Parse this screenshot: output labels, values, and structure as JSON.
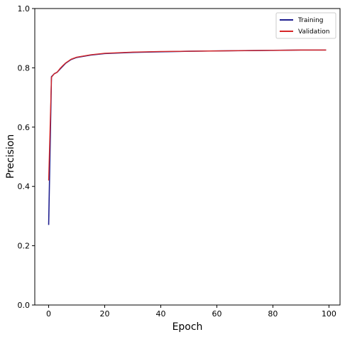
{
  "chart_data": {
    "type": "line",
    "xlabel": "Epoch",
    "ylabel": "Precision",
    "xlim": [
      -4.95,
      103.95
    ],
    "ylim": [
      0.0,
      1.0
    ],
    "xticks": [
      0,
      20,
      40,
      60,
      80,
      100
    ],
    "yticks": [
      0.0,
      0.2,
      0.4,
      0.6,
      0.8,
      1.0
    ],
    "grid": false,
    "legend_position": "top-right",
    "series": [
      {
        "name": "Training",
        "color": "#1f1f8f",
        "x": [
          0,
          1,
          2,
          3,
          4,
          5,
          6,
          8,
          10,
          15,
          20,
          30,
          40,
          50,
          60,
          70,
          80,
          90,
          99
        ],
        "y": [
          0.27,
          0.77,
          0.78,
          0.785,
          0.795,
          0.805,
          0.815,
          0.828,
          0.835,
          0.843,
          0.848,
          0.852,
          0.854,
          0.856,
          0.857,
          0.858,
          0.859,
          0.86,
          0.86
        ]
      },
      {
        "name": "Validation",
        "color": "#d62728",
        "x": [
          0,
          1,
          2,
          3,
          4,
          5,
          6,
          8,
          10,
          15,
          20,
          30,
          40,
          50,
          60,
          70,
          80,
          90,
          99
        ],
        "y": [
          0.42,
          0.768,
          0.78,
          0.785,
          0.797,
          0.807,
          0.816,
          0.829,
          0.836,
          0.844,
          0.849,
          0.853,
          0.855,
          0.856,
          0.857,
          0.858,
          0.859,
          0.86,
          0.86
        ]
      }
    ]
  }
}
